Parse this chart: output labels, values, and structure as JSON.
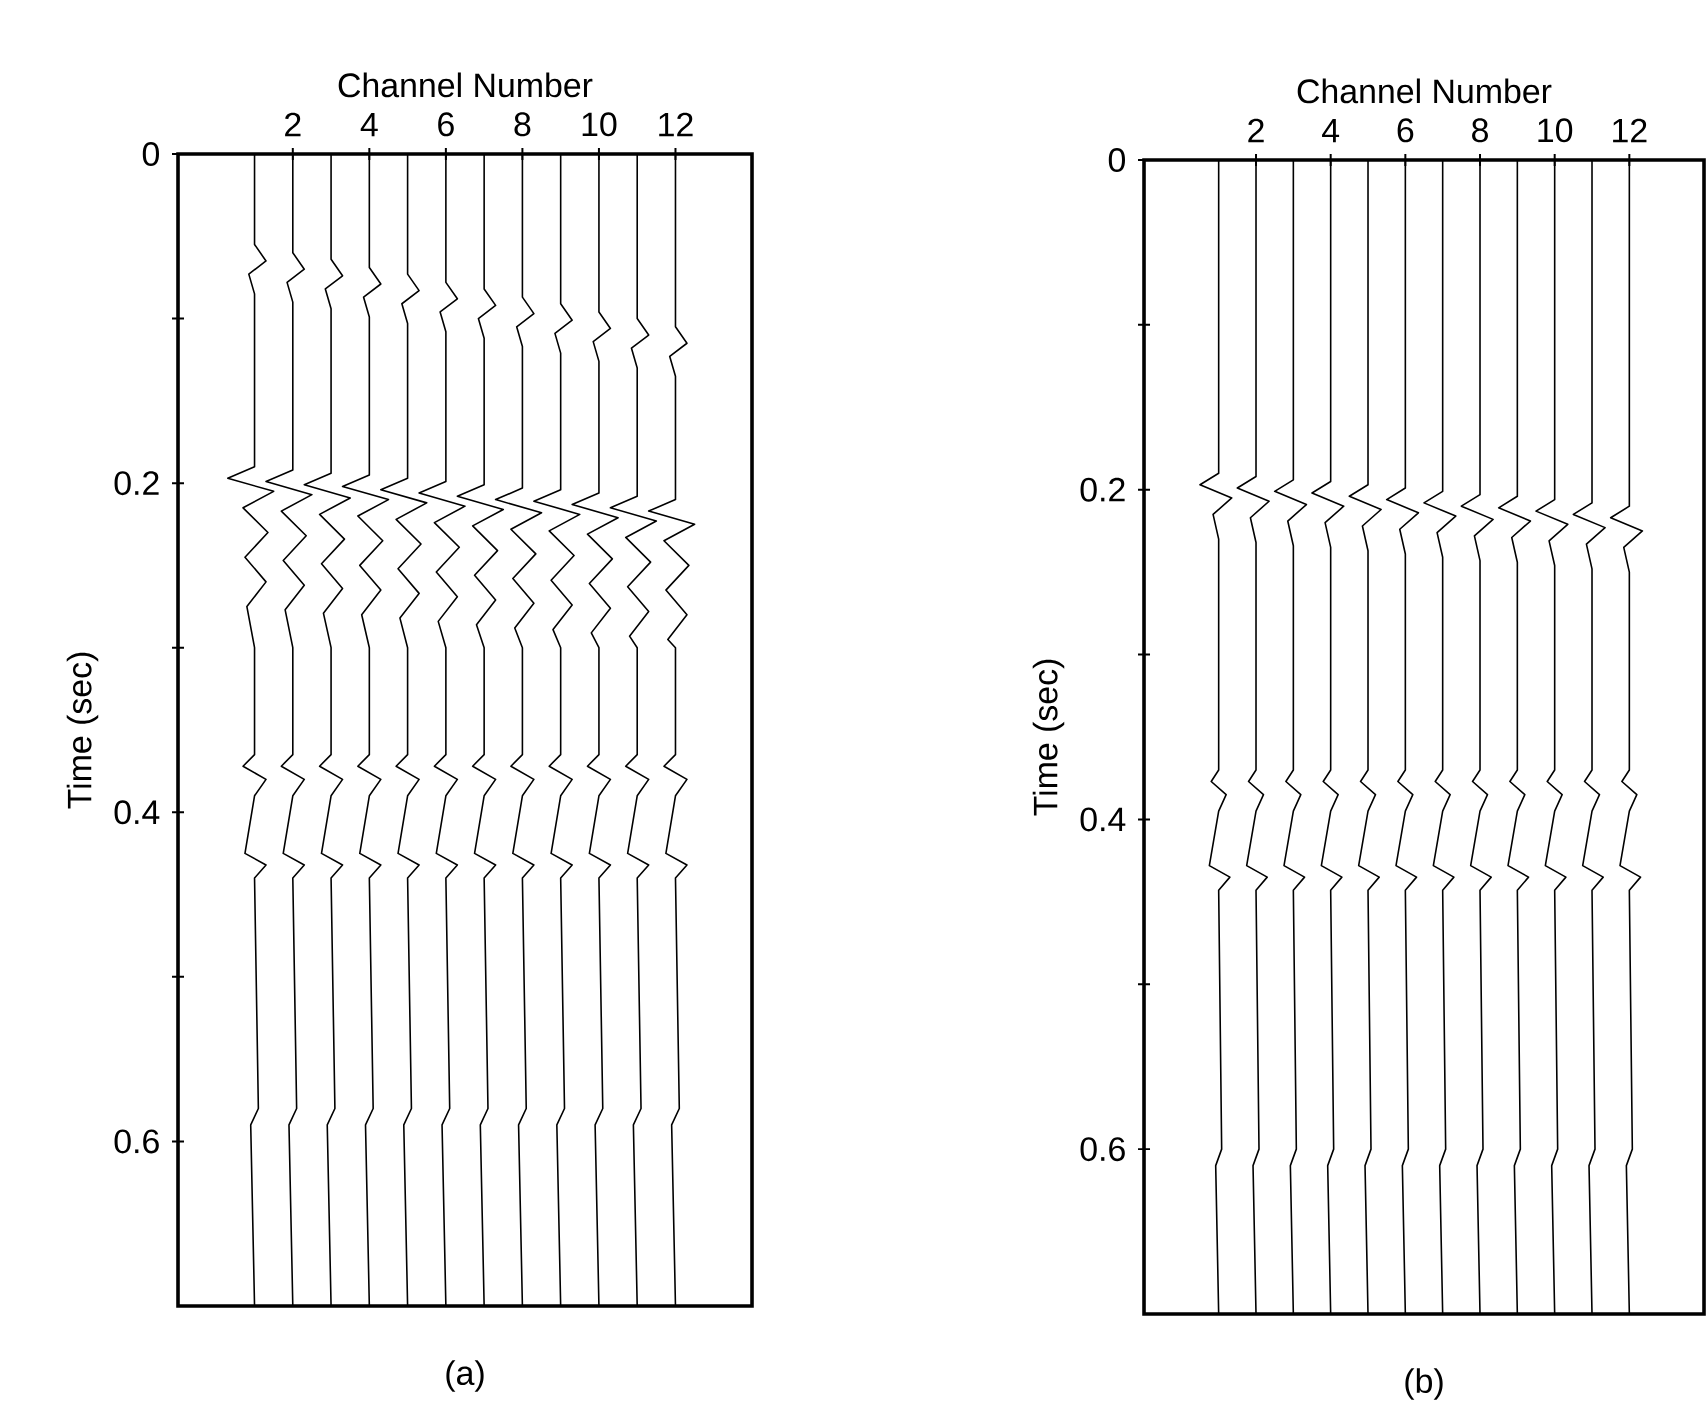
{
  "chart_data": [
    {
      "type": "line",
      "xlabel": "Channel Number",
      "ylabel": "Time (sec)",
      "annotations": [
        "(a)"
      ],
      "xlim": [
        -1,
        14
      ],
      "xticks": [
        2,
        4,
        6,
        8,
        10,
        12
      ],
      "ylim": [
        0.7,
        0
      ],
      "yticks": [
        0,
        {
          "value": 0.1,
          "label": null
        },
        0.2,
        {
          "value": 0.3,
          "label": null
        },
        0.4,
        {
          "value": 0.5,
          "label": null
        },
        0.6
      ],
      "series": [
        {
          "color": "#000000",
          "x": [
            1,
            1,
            1.3,
            0.85,
            1,
            1,
            0.3,
            1.5,
            0.7,
            1.35,
            0.75,
            1.3,
            0.8,
            1,
            1,
            0.7,
            1.3,
            1,
            0.75,
            1.3,
            1,
            1.1,
            0.9,
            1
          ],
          "values": [
            0,
            0.055,
            0.065,
            0.073,
            0.085,
            0.19,
            0.197,
            0.205,
            0.215,
            0.23,
            0.245,
            0.26,
            0.275,
            0.3,
            0.365,
            0.372,
            0.38,
            0.39,
            0.425,
            0.432,
            0.44,
            0.58,
            0.59,
            0.7
          ]
        },
        {
          "color": "#000000",
          "x": [
            2,
            2,
            2.3,
            1.85,
            2,
            2,
            1.3,
            2.5,
            1.7,
            2.35,
            1.75,
            2.3,
            1.8,
            2,
            2,
            1.7,
            2.3,
            2,
            1.75,
            2.3,
            2,
            2.1,
            1.9,
            2
          ],
          "values": [
            0,
            0.06,
            0.07,
            0.078,
            0.09,
            0.192,
            0.199,
            0.207,
            0.217,
            0.232,
            0.247,
            0.262,
            0.277,
            0.3,
            0.365,
            0.372,
            0.38,
            0.39,
            0.425,
            0.432,
            0.44,
            0.58,
            0.59,
            0.7
          ]
        },
        {
          "color": "#000000",
          "x": [
            3,
            3,
            3.3,
            2.85,
            3,
            3,
            2.3,
            3.5,
            2.7,
            3.35,
            2.75,
            3.3,
            2.8,
            3,
            3,
            2.7,
            3.3,
            3,
            2.75,
            3.3,
            3,
            3.1,
            2.9,
            3
          ],
          "values": [
            0,
            0.064,
            0.074,
            0.082,
            0.094,
            0.194,
            0.201,
            0.209,
            0.219,
            0.234,
            0.249,
            0.264,
            0.279,
            0.3,
            0.365,
            0.372,
            0.38,
            0.39,
            0.425,
            0.432,
            0.44,
            0.58,
            0.59,
            0.7
          ]
        },
        {
          "color": "#000000",
          "x": [
            4,
            4,
            4.3,
            3.85,
            4,
            4,
            3.3,
            4.5,
            3.7,
            4.35,
            3.75,
            4.3,
            3.8,
            4,
            4,
            3.7,
            4.3,
            4,
            3.75,
            4.3,
            4,
            4.1,
            3.9,
            4
          ],
          "values": [
            0,
            0.069,
            0.079,
            0.087,
            0.099,
            0.195,
            0.202,
            0.21,
            0.22,
            0.235,
            0.25,
            0.265,
            0.28,
            0.3,
            0.365,
            0.372,
            0.38,
            0.39,
            0.425,
            0.432,
            0.44,
            0.58,
            0.59,
            0.7
          ]
        },
        {
          "color": "#000000",
          "x": [
            5,
            5,
            5.3,
            4.85,
            5,
            5,
            4.3,
            5.5,
            4.7,
            5.35,
            4.75,
            5.3,
            4.8,
            5,
            5,
            4.7,
            5.3,
            5,
            4.75,
            5.3,
            5,
            5.1,
            4.9,
            5
          ],
          "values": [
            0,
            0.073,
            0.083,
            0.091,
            0.103,
            0.197,
            0.204,
            0.212,
            0.222,
            0.237,
            0.252,
            0.267,
            0.282,
            0.3,
            0.365,
            0.372,
            0.38,
            0.39,
            0.425,
            0.432,
            0.44,
            0.58,
            0.59,
            0.7
          ]
        },
        {
          "color": "#000000",
          "x": [
            6,
            6,
            6.3,
            5.85,
            6,
            6,
            5.3,
            6.5,
            5.7,
            6.35,
            5.75,
            6.3,
            5.8,
            6,
            6,
            5.7,
            6.3,
            6,
            5.75,
            6.3,
            6,
            6.1,
            5.9,
            6
          ],
          "values": [
            0,
            0.078,
            0.088,
            0.096,
            0.108,
            0.199,
            0.206,
            0.214,
            0.224,
            0.239,
            0.254,
            0.269,
            0.284,
            0.3,
            0.365,
            0.372,
            0.38,
            0.39,
            0.425,
            0.432,
            0.44,
            0.58,
            0.59,
            0.7
          ]
        },
        {
          "color": "#000000",
          "x": [
            7,
            7,
            7.3,
            6.85,
            7,
            7,
            6.3,
            7.5,
            6.7,
            7.35,
            6.75,
            7.3,
            6.8,
            7,
            7,
            6.7,
            7.3,
            7,
            6.75,
            7.3,
            7,
            7.1,
            6.9,
            7
          ],
          "values": [
            0,
            0.082,
            0.092,
            0.1,
            0.112,
            0.201,
            0.208,
            0.216,
            0.226,
            0.241,
            0.256,
            0.271,
            0.286,
            0.3,
            0.365,
            0.372,
            0.38,
            0.39,
            0.425,
            0.432,
            0.44,
            0.58,
            0.59,
            0.7
          ]
        },
        {
          "color": "#000000",
          "x": [
            8,
            8,
            8.3,
            7.85,
            8,
            8,
            7.3,
            8.5,
            7.7,
            8.35,
            7.75,
            8.3,
            7.8,
            8,
            8,
            7.7,
            8.3,
            8,
            7.75,
            8.3,
            8,
            8.1,
            7.9,
            8
          ],
          "values": [
            0,
            0.087,
            0.097,
            0.105,
            0.117,
            0.203,
            0.21,
            0.218,
            0.228,
            0.243,
            0.258,
            0.273,
            0.288,
            0.3,
            0.365,
            0.372,
            0.38,
            0.39,
            0.425,
            0.432,
            0.44,
            0.58,
            0.59,
            0.7
          ]
        },
        {
          "color": "#000000",
          "x": [
            9,
            9,
            9.3,
            8.85,
            9,
            9,
            8.3,
            9.5,
            8.7,
            9.35,
            8.75,
            9.3,
            8.8,
            9,
            9,
            8.7,
            9.3,
            9,
            8.75,
            9.3,
            9,
            9.1,
            8.9,
            9
          ],
          "values": [
            0,
            0.091,
            0.101,
            0.109,
            0.121,
            0.204,
            0.211,
            0.219,
            0.229,
            0.244,
            0.259,
            0.274,
            0.289,
            0.3,
            0.365,
            0.372,
            0.38,
            0.39,
            0.425,
            0.432,
            0.44,
            0.58,
            0.59,
            0.7
          ]
        },
        {
          "color": "#000000",
          "x": [
            10,
            10,
            10.3,
            9.85,
            10,
            10,
            9.3,
            10.5,
            9.7,
            10.35,
            9.75,
            10.3,
            9.8,
            10,
            10,
            9.7,
            10.3,
            10,
            9.75,
            10.3,
            10,
            10.1,
            9.9,
            10
          ],
          "values": [
            0,
            0.096,
            0.106,
            0.114,
            0.126,
            0.206,
            0.213,
            0.221,
            0.231,
            0.246,
            0.261,
            0.276,
            0.291,
            0.3,
            0.365,
            0.372,
            0.38,
            0.39,
            0.425,
            0.432,
            0.44,
            0.58,
            0.59,
            0.7
          ]
        },
        {
          "color": "#000000",
          "x": [
            11,
            11,
            11.3,
            10.85,
            11,
            11,
            10.3,
            11.5,
            10.7,
            11.35,
            10.75,
            11.3,
            10.8,
            11,
            11,
            10.7,
            11.3,
            11,
            10.75,
            11.3,
            11,
            11.1,
            10.9,
            11
          ],
          "values": [
            0,
            0.1,
            0.11,
            0.118,
            0.13,
            0.208,
            0.215,
            0.223,
            0.233,
            0.248,
            0.263,
            0.278,
            0.293,
            0.3,
            0.365,
            0.372,
            0.38,
            0.39,
            0.425,
            0.432,
            0.44,
            0.58,
            0.59,
            0.7
          ]
        },
        {
          "color": "#000000",
          "x": [
            12,
            12,
            12.3,
            11.85,
            12,
            12,
            11.3,
            12.5,
            11.7,
            12.35,
            11.75,
            12.3,
            11.8,
            12,
            12,
            11.7,
            12.3,
            12,
            11.75,
            12.3,
            12,
            12.1,
            11.9,
            12
          ],
          "values": [
            0,
            0.105,
            0.115,
            0.123,
            0.135,
            0.21,
            0.217,
            0.225,
            0.235,
            0.25,
            0.265,
            0.28,
            0.295,
            0.3,
            0.365,
            0.372,
            0.38,
            0.39,
            0.425,
            0.432,
            0.44,
            0.58,
            0.59,
            0.7
          ]
        }
      ]
    },
    {
      "type": "line",
      "xlabel": "Channel Number",
      "ylabel": "Time (sec)",
      "annotations": [
        "(b)"
      ],
      "xlim": [
        -1,
        14
      ],
      "xticks": [
        2,
        4,
        6,
        8,
        10,
        12
      ],
      "ylim": [
        0.7,
        0
      ],
      "yticks": [
        0,
        {
          "value": 0.1,
          "label": null
        },
        0.2,
        {
          "value": 0.3,
          "label": null
        },
        0.4,
        {
          "value": 0.5,
          "label": null
        },
        0.6
      ],
      "series": [
        {
          "color": "#000000",
          "x": [
            1,
            1,
            0.5,
            1.35,
            0.85,
            1,
            1,
            0.8,
            1.2,
            1,
            0.75,
            1.3,
            1,
            1.08,
            0.92,
            1
          ],
          "values": [
            0,
            0.19,
            0.197,
            0.205,
            0.215,
            0.23,
            0.37,
            0.377,
            0.385,
            0.395,
            0.428,
            0.435,
            0.443,
            0.6,
            0.61,
            0.7
          ]
        },
        {
          "color": "#000000",
          "x": [
            2,
            2,
            1.5,
            2.35,
            1.85,
            2,
            2,
            1.8,
            2.2,
            2,
            1.75,
            2.3,
            2,
            2.08,
            1.92,
            2
          ],
          "values": [
            0,
            0.192,
            0.199,
            0.207,
            0.217,
            0.232,
            0.37,
            0.377,
            0.385,
            0.395,
            0.428,
            0.435,
            0.443,
            0.6,
            0.61,
            0.7
          ]
        },
        {
          "color": "#000000",
          "x": [
            3,
            3,
            2.5,
            3.35,
            2.85,
            3,
            3,
            2.8,
            3.2,
            3,
            2.75,
            3.3,
            3,
            3.08,
            2.92,
            3
          ],
          "values": [
            0,
            0.194,
            0.201,
            0.209,
            0.219,
            0.234,
            0.37,
            0.377,
            0.385,
            0.395,
            0.428,
            0.435,
            0.443,
            0.6,
            0.61,
            0.7
          ]
        },
        {
          "color": "#000000",
          "x": [
            4,
            4,
            3.5,
            4.35,
            3.85,
            4,
            4,
            3.8,
            4.2,
            4,
            3.75,
            4.3,
            4,
            4.08,
            3.92,
            4
          ],
          "values": [
            0,
            0.195,
            0.202,
            0.21,
            0.22,
            0.235,
            0.37,
            0.377,
            0.385,
            0.395,
            0.428,
            0.435,
            0.443,
            0.6,
            0.61,
            0.7
          ]
        },
        {
          "color": "#000000",
          "x": [
            5,
            5,
            4.5,
            5.35,
            4.85,
            5,
            5,
            4.8,
            5.2,
            5,
            4.75,
            5.3,
            5,
            5.08,
            4.92,
            5
          ],
          "values": [
            0,
            0.197,
            0.204,
            0.212,
            0.222,
            0.237,
            0.37,
            0.377,
            0.385,
            0.395,
            0.428,
            0.435,
            0.443,
            0.6,
            0.61,
            0.7
          ]
        },
        {
          "color": "#000000",
          "x": [
            6,
            6,
            5.5,
            6.35,
            5.85,
            6,
            6,
            5.8,
            6.2,
            6,
            5.75,
            6.3,
            6,
            6.08,
            5.92,
            6
          ],
          "values": [
            0,
            0.199,
            0.206,
            0.214,
            0.224,
            0.239,
            0.37,
            0.377,
            0.385,
            0.395,
            0.428,
            0.435,
            0.443,
            0.6,
            0.61,
            0.7
          ]
        },
        {
          "color": "#000000",
          "x": [
            7,
            7,
            6.5,
            7.35,
            6.85,
            7,
            7,
            6.8,
            7.2,
            7,
            6.75,
            7.3,
            7,
            7.08,
            6.92,
            7
          ],
          "values": [
            0,
            0.201,
            0.208,
            0.216,
            0.226,
            0.241,
            0.37,
            0.377,
            0.385,
            0.395,
            0.428,
            0.435,
            0.443,
            0.6,
            0.61,
            0.7
          ]
        },
        {
          "color": "#000000",
          "x": [
            8,
            8,
            7.5,
            8.35,
            7.85,
            8,
            8,
            7.8,
            8.2,
            8,
            7.75,
            8.3,
            8,
            8.08,
            7.92,
            8
          ],
          "values": [
            0,
            0.203,
            0.21,
            0.218,
            0.228,
            0.243,
            0.37,
            0.377,
            0.385,
            0.395,
            0.428,
            0.435,
            0.443,
            0.6,
            0.61,
            0.7
          ]
        },
        {
          "color": "#000000",
          "x": [
            9,
            9,
            8.5,
            9.35,
            8.85,
            9,
            9,
            8.8,
            9.2,
            9,
            8.75,
            9.3,
            9,
            9.08,
            8.92,
            9
          ],
          "values": [
            0,
            0.204,
            0.211,
            0.219,
            0.229,
            0.244,
            0.37,
            0.377,
            0.385,
            0.395,
            0.428,
            0.435,
            0.443,
            0.6,
            0.61,
            0.7
          ]
        },
        {
          "color": "#000000",
          "x": [
            10,
            10,
            9.5,
            10.35,
            9.85,
            10,
            10,
            9.8,
            10.2,
            10,
            9.75,
            10.3,
            10,
            10.08,
            9.92,
            10
          ],
          "values": [
            0,
            0.206,
            0.213,
            0.221,
            0.231,
            0.246,
            0.37,
            0.377,
            0.385,
            0.395,
            0.428,
            0.435,
            0.443,
            0.6,
            0.61,
            0.7
          ]
        },
        {
          "color": "#000000",
          "x": [
            11,
            11,
            10.5,
            11.35,
            10.85,
            11,
            11,
            10.8,
            11.2,
            11,
            10.75,
            11.3,
            11,
            11.08,
            10.92,
            11
          ],
          "values": [
            0,
            0.208,
            0.215,
            0.223,
            0.233,
            0.248,
            0.37,
            0.377,
            0.385,
            0.395,
            0.428,
            0.435,
            0.443,
            0.6,
            0.61,
            0.7
          ]
        },
        {
          "color": "#000000",
          "x": [
            12,
            12,
            11.5,
            12.35,
            11.85,
            12,
            12,
            11.8,
            12.2,
            12,
            11.75,
            12.3,
            12,
            12.08,
            11.92,
            12
          ],
          "values": [
            0,
            0.21,
            0.217,
            0.225,
            0.235,
            0.25,
            0.37,
            0.377,
            0.385,
            0.395,
            0.428,
            0.435,
            0.443,
            0.6,
            0.61,
            0.7
          ]
        }
      ]
    }
  ]
}
